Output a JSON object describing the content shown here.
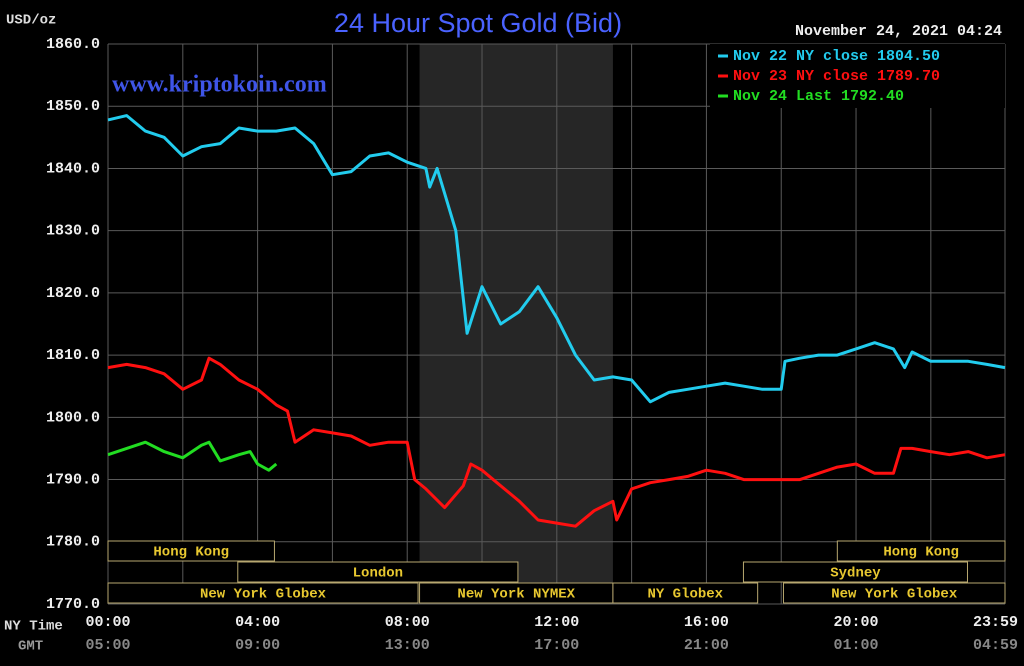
{
  "chart_data": {
    "type": "line",
    "title": "24 Hour Spot Gold (Bid)",
    "y_label": "USD/oz",
    "timestamp": "November 24, 2021 04:24",
    "watermark": "www.kriptokoin.com",
    "x_row_label": "NY Time",
    "x2_row_label": "GMT",
    "xlim": [
      0,
      23.983
    ],
    "ylim": [
      1770,
      1860
    ],
    "yticks": [
      {
        "value": 1770,
        "label": "1770.0"
      },
      {
        "value": 1780,
        "label": "1780.0"
      },
      {
        "value": 1790,
        "label": "1790.0"
      },
      {
        "value": 1800,
        "label": "1800.0"
      },
      {
        "value": 1810,
        "label": "1810.0"
      },
      {
        "value": 1820,
        "label": "1820.0"
      },
      {
        "value": 1830,
        "label": "1830.0"
      },
      {
        "value": 1840,
        "label": "1840.0"
      },
      {
        "value": 1850,
        "label": "1850.0"
      },
      {
        "value": 1860,
        "label": "1860.0"
      }
    ],
    "xticks": [
      {
        "value": 0,
        "label": "00:00"
      },
      {
        "value": 4,
        "label": "04:00"
      },
      {
        "value": 8,
        "label": "08:00"
      },
      {
        "value": 12,
        "label": "12:00"
      },
      {
        "value": 16,
        "label": "16:00"
      },
      {
        "value": 20,
        "label": "20:00"
      },
      {
        "value": 23.983,
        "label": "23:59"
      }
    ],
    "x2tick_labels": [
      "05:00",
      "09:00",
      "13:00",
      "17:00",
      "21:00",
      "01:00",
      "04:59"
    ],
    "xminor": [
      2,
      6,
      10,
      14,
      18,
      22
    ],
    "grid": true,
    "legend": "top-right",
    "shade": [
      8.33,
      13.5
    ],
    "sessions": [
      {
        "name": "Hong Kong",
        "row": 1,
        "start": 0,
        "end": 4.45
      },
      {
        "name": "Hong Kong",
        "row": 1,
        "start": 19.5,
        "end": 23.983
      },
      {
        "name": "London",
        "row": 2,
        "start": 3.47,
        "end": 10.96
      },
      {
        "name": "Sydney",
        "row": 2,
        "start": 16.99,
        "end": 22.98
      },
      {
        "name": "New York Globex",
        "row": 3,
        "start": 0,
        "end": 8.29
      },
      {
        "name": "New York NYMEX",
        "row": 3,
        "start": 8.33,
        "end": 13.5
      },
      {
        "name": "NY Globex",
        "row": 3,
        "start": 13.5,
        "end": 17.37
      },
      {
        "name": "New York Globex",
        "row": 3,
        "start": 18.06,
        "end": 23.983
      }
    ],
    "series": [
      {
        "name": "Nov 22 NY close 1804.50",
        "color": "#22ccee",
        "x": [
          0,
          0.5,
          1,
          1.5,
          2,
          2.5,
          3,
          3.5,
          4,
          4.5,
          5,
          5.5,
          6,
          6.5,
          7,
          7.5,
          8,
          8.5,
          8.6,
          8.8,
          9,
          9.3,
          9.6,
          10,
          10.5,
          11,
          11.5,
          12,
          12.5,
          13,
          13.5,
          14,
          14.5,
          15,
          15.5,
          16,
          16.5,
          17,
          17.5,
          18,
          18.1,
          18.5,
          19,
          19.5,
          20,
          20.5,
          21,
          21.3,
          21.5,
          22,
          22.5,
          23,
          23.5,
          23.983
        ],
        "values": [
          1847.8,
          1848.5,
          1846,
          1845,
          1842,
          1843.5,
          1844,
          1846.5,
          1846,
          1846,
          1846.5,
          1844,
          1839,
          1839.5,
          1842,
          1842.5,
          1841,
          1840,
          1837,
          1840,
          1836,
          1830,
          1813.5,
          1821,
          1815,
          1817,
          1821,
          1816,
          1810,
          1806,
          1806.5,
          1806,
          1802.5,
          1804,
          1804.5,
          1805,
          1805.5,
          1805,
          1804.5,
          1804.5,
          1809,
          1809.5,
          1810,
          1810,
          1811,
          1812,
          1811,
          1808,
          1810.5,
          1809,
          1809,
          1809,
          1808.5,
          1808
        ]
      },
      {
        "name": "Nov 23 NY close 1789.70",
        "color": "#ff1010",
        "x": [
          0,
          0.5,
          1,
          1.5,
          2,
          2.5,
          2.7,
          3,
          3.5,
          4,
          4.5,
          4.8,
          5,
          5.5,
          6,
          6.5,
          7,
          7.5,
          8,
          8.2,
          8.5,
          9,
          9.5,
          9.7,
          10,
          10.5,
          11,
          11.5,
          12,
          12.5,
          13,
          13.5,
          13.6,
          14,
          14.5,
          15,
          15.5,
          16,
          16.5,
          17,
          17.5,
          18,
          18.5,
          19,
          19.5,
          20,
          20.5,
          21,
          21.2,
          21.5,
          22,
          22.5,
          23,
          23.5,
          23.983
        ],
        "values": [
          1808,
          1808.5,
          1808,
          1807,
          1804.5,
          1806,
          1809.5,
          1808.5,
          1806,
          1804.5,
          1802,
          1801,
          1796,
          1798,
          1797.5,
          1797,
          1795.5,
          1796,
          1796,
          1790,
          1788.5,
          1785.5,
          1789,
          1792.5,
          1791.5,
          1789,
          1786.5,
          1783.5,
          1783,
          1782.5,
          1785,
          1786.5,
          1783.5,
          1788.5,
          1789.5,
          1790,
          1790.5,
          1791.5,
          1791,
          1790,
          1790,
          1790,
          1790,
          1791,
          1792,
          1792.5,
          1791,
          1791,
          1795,
          1795,
          1794.5,
          1794,
          1794.5,
          1793.5,
          1794
        ]
      },
      {
        "name": "Nov 24 Last 1792.40",
        "color": "#22dd22",
        "x": [
          0,
          0.5,
          1,
          1.5,
          2,
          2.5,
          2.7,
          3,
          3.5,
          3.8,
          4,
          4.3,
          4.5
        ],
        "values": [
          1794,
          1795,
          1796,
          1794.5,
          1793.5,
          1795.5,
          1796,
          1793,
          1794,
          1794.5,
          1792.5,
          1791.5,
          1792.5
        ]
      }
    ]
  }
}
